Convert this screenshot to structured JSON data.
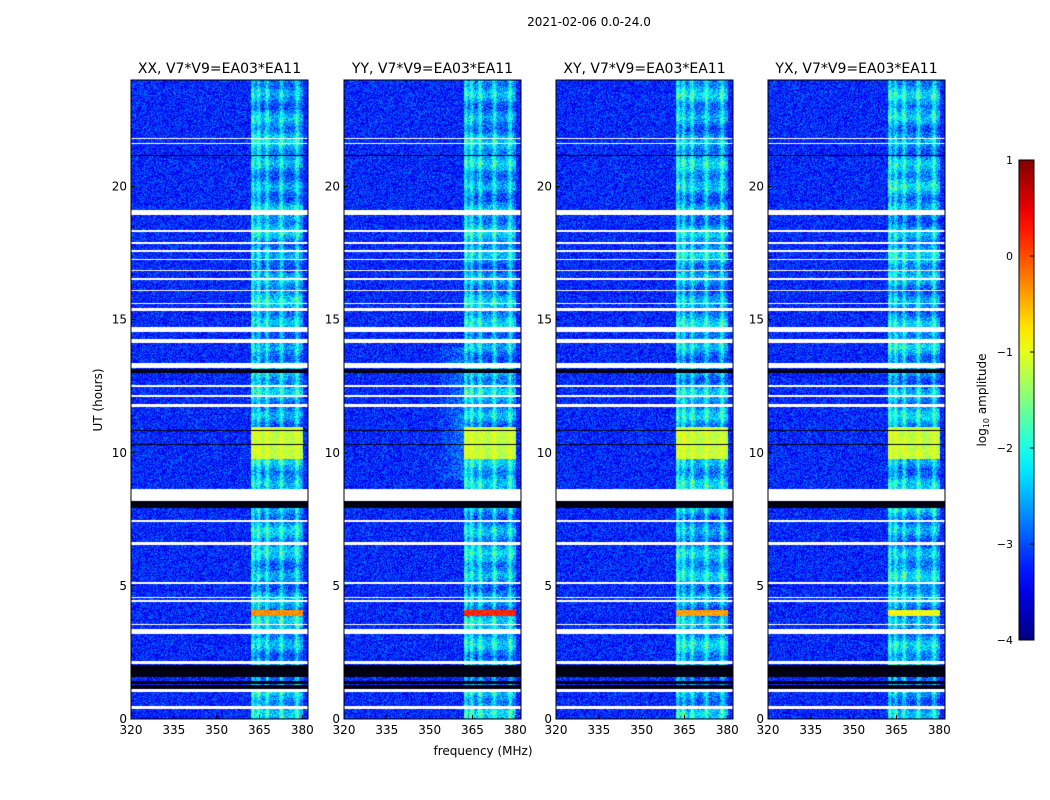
{
  "chart_data": {
    "type": "heatmap",
    "title": "2021-02-06 0.0-24.0",
    "xlabel": "frequency (MHz)",
    "ylabel": "UT (hours)",
    "xlim": [
      320,
      382
    ],
    "ylim": [
      0,
      24
    ],
    "x_ticks": [
      "320",
      "335",
      "350",
      "365",
      "380"
    ],
    "y_ticks": [
      "0",
      "5",
      "10",
      "15",
      "20"
    ],
    "panels": [
      {
        "title": "XX, V7*V9=EA03*EA11",
        "burst_4h_level": -0.3
      },
      {
        "title": "YY, V7*V9=EA03*EA11",
        "burst_4h_level": 0.2
      },
      {
        "title": "XY, V7*V9=EA03*EA11",
        "burst_4h_level": -0.4
      },
      {
        "title": "YX, V7*V9=EA03*EA11",
        "burst_4h_level": -0.9
      }
    ],
    "colorbar": {
      "label": "log10 amplitude",
      "min": -4,
      "max": 1,
      "ticks": [
        "1",
        "0",
        "−1",
        "−2",
        "−3",
        "−4"
      ],
      "colormap": "jet"
    },
    "features": {
      "rfi_band_mhz": [
        362,
        380
      ],
      "rfi_channels_mhz": [
        362.5,
        364.5,
        367.5,
        372.5,
        378
      ],
      "bright_block_hours": [
        9.8,
        11.0
      ],
      "bright_block_level": -1.2,
      "burst_hours": [
        3.9,
        4.1
      ],
      "background_level": -3.2,
      "blank_gaps_hours": [
        [
          0.4,
          0.5
        ],
        [
          1.05,
          1.15
        ],
        [
          2.1,
          2.2
        ],
        [
          3.2,
          3.4
        ],
        [
          3.55,
          3.6
        ],
        [
          4.4,
          4.5
        ],
        [
          4.55,
          4.6
        ],
        [
          5.1,
          5.15
        ],
        [
          6.55,
          6.65
        ],
        [
          7.4,
          7.5
        ],
        [
          8.2,
          8.65
        ],
        [
          11.75,
          11.85
        ],
        [
          12.1,
          12.2
        ],
        [
          12.5,
          12.55
        ],
        [
          13.2,
          13.4
        ],
        [
          14.15,
          14.3
        ],
        [
          14.55,
          14.75
        ],
        [
          15.35,
          15.45
        ],
        [
          15.6,
          15.65
        ],
        [
          16.1,
          16.15
        ],
        [
          16.5,
          16.6
        ],
        [
          16.85,
          16.9
        ],
        [
          17.25,
          17.3
        ],
        [
          17.55,
          17.65
        ],
        [
          17.85,
          17.95
        ],
        [
          18.3,
          18.4
        ],
        [
          18.95,
          19.15
        ],
        [
          21.6,
          21.65
        ],
        [
          21.8,
          21.85
        ]
      ],
      "flagged_hours": [
        [
          1.15,
          1.3
        ],
        [
          1.35,
          1.45
        ],
        [
          1.6,
          2.05
        ],
        [
          7.95,
          8.2
        ],
        [
          13.0,
          13.15
        ],
        [
          10.3,
          10.33
        ],
        [
          10.85,
          10.88
        ],
        [
          21.15,
          21.2
        ]
      ]
    }
  }
}
